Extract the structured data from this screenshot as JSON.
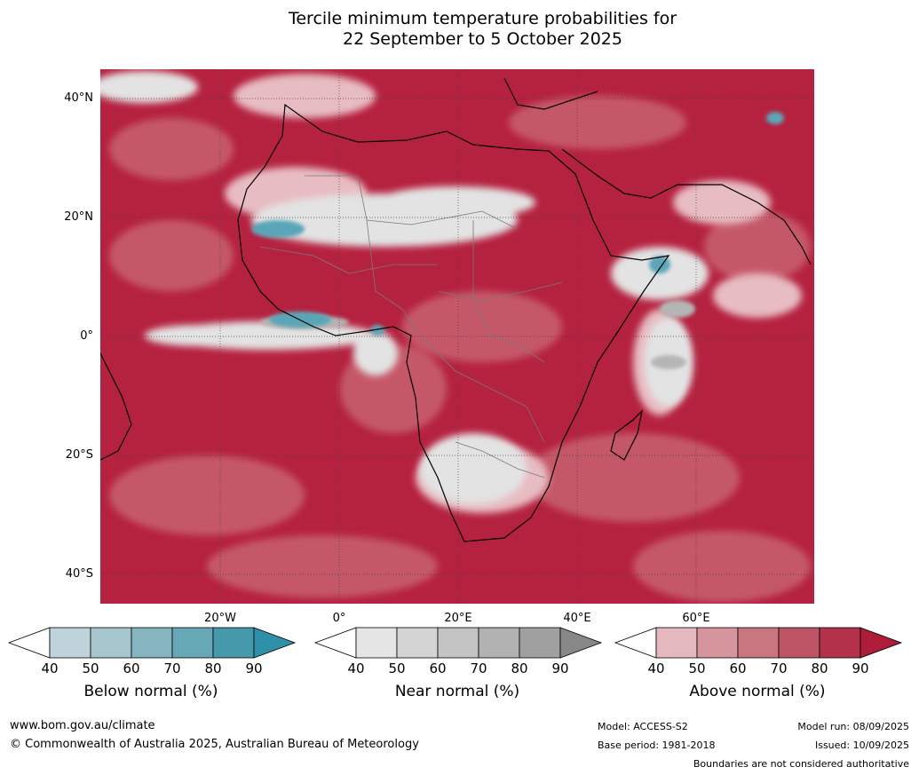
{
  "title": {
    "line1": "Tercile minimum temperature probabilities for",
    "line2": "22 September to 5 October 2025"
  },
  "axes": {
    "lat_labels": [
      "40°N",
      "20°N",
      "0°",
      "20°S",
      "40°S"
    ],
    "lon_labels": [
      "20°W",
      "0°",
      "20°E",
      "40°E",
      "60°E"
    ]
  },
  "colorbars": [
    {
      "label": "Below normal (%)",
      "ticks": [
        "40",
        "50",
        "60",
        "70",
        "80",
        "90"
      ],
      "colors": [
        "#ffffff",
        "#bfd3da",
        "#a6c6cd",
        "#86b4c0",
        "#66a8b6",
        "#4698ab",
        "#2e90a8"
      ]
    },
    {
      "label": "Near normal (%)",
      "ticks": [
        "40",
        "50",
        "60",
        "70",
        "80",
        "90"
      ],
      "colors": [
        "#ffffff",
        "#e5e5e5",
        "#d4d4d4",
        "#c3c3c3",
        "#b2b2b2",
        "#a0a0a0",
        "#878787"
      ]
    },
    {
      "label": "Above normal (%)",
      "ticks": [
        "40",
        "50",
        "60",
        "70",
        "80",
        "90"
      ],
      "colors": [
        "#ffffff",
        "#e3b9bf",
        "#d6959c",
        "#c97680",
        "#bd5465",
        "#b3314a",
        "#ad1d3a"
      ]
    }
  ],
  "footer": {
    "website": "www.bom.gov.au/climate",
    "copyright": "© Commonwealth of Australia 2025, Australian Bureau of Meteorology",
    "model": "Model: ACCESS-S2",
    "base_period": "Base period: 1981-2018",
    "model_run": "Model run: 08/09/2025",
    "issued": "Issued: 10/09/2025",
    "disclaimer": "Boundaries are not considered authoritative"
  },
  "map_colors": {
    "ocean_above": "#b52240",
    "above_mid": "#c55868",
    "above_light": "#d88f99",
    "above_pale": "#e7bcc2",
    "near_pale": "#e3e3e3",
    "near_mid": "#b5b5b5",
    "below": "#5aa6b8",
    "coast": "#000000",
    "border": "#7a7a7a",
    "grid": "#444444"
  }
}
